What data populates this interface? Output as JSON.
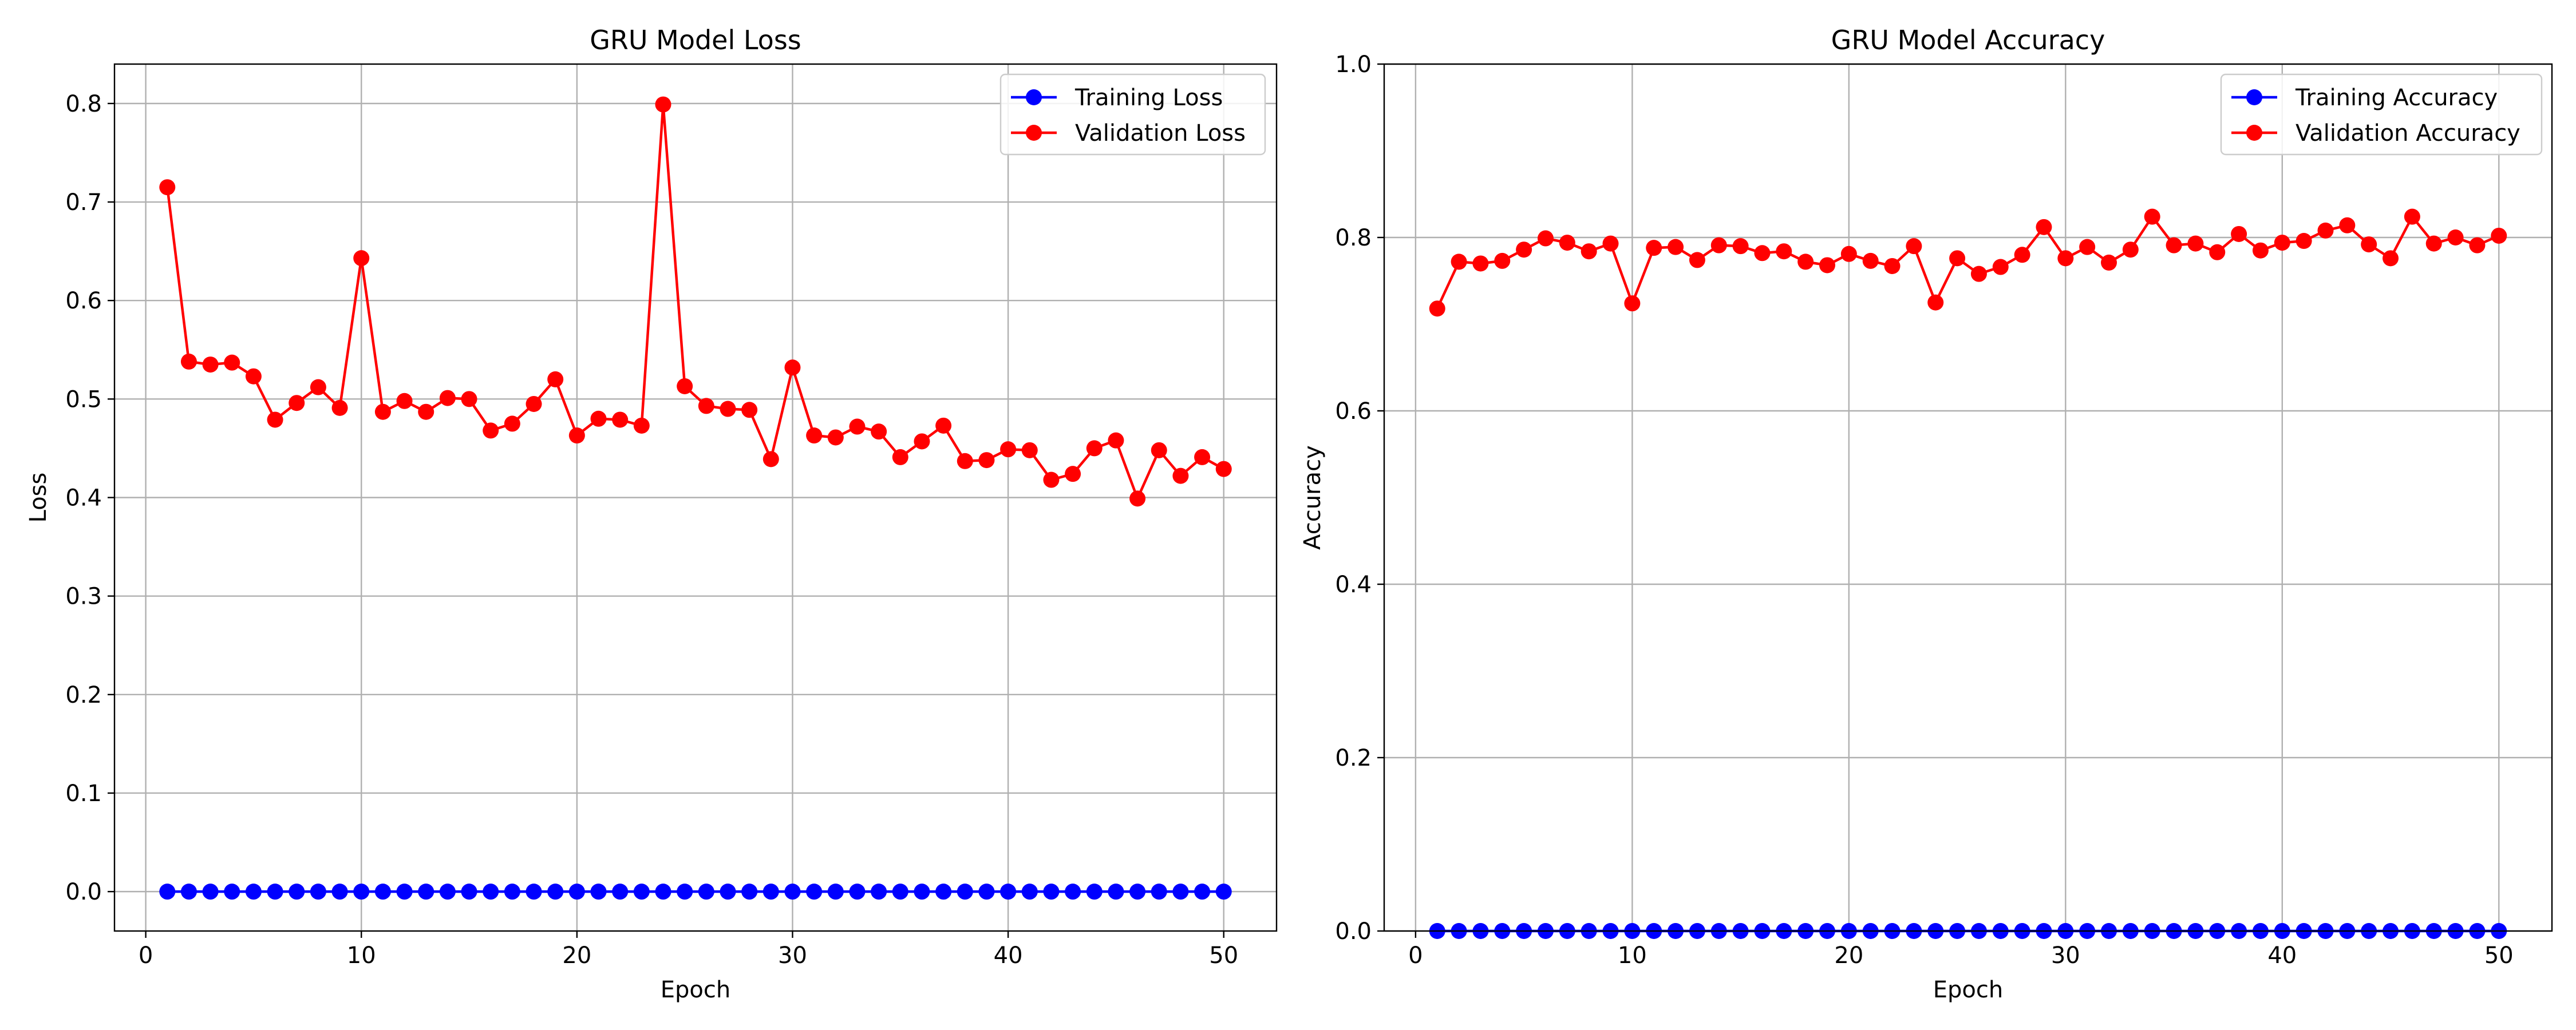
{
  "chart_data": [
    {
      "type": "line",
      "title": "GRU Model Loss",
      "xlabel": "Epoch",
      "ylabel": "Loss",
      "xlim": [
        -1.45,
        52.45
      ],
      "ylim": [
        -0.04,
        0.84
      ],
      "xticks": [
        0,
        10,
        20,
        30,
        40,
        50
      ],
      "xtick_labels": [
        "0",
        "10",
        "20",
        "30",
        "40",
        "50"
      ],
      "yticks": [
        0.0,
        0.1,
        0.2,
        0.3,
        0.4,
        0.5,
        0.6,
        0.7,
        0.8
      ],
      "ytick_labels": [
        "0.0",
        "0.1",
        "0.2",
        "0.3",
        "0.4",
        "0.5",
        "0.6",
        "0.7",
        "0.8"
      ],
      "grid": true,
      "legend_position": "top-right",
      "x": [
        1,
        2,
        3,
        4,
        5,
        6,
        7,
        8,
        9,
        10,
        11,
        12,
        13,
        14,
        15,
        16,
        17,
        18,
        19,
        20,
        21,
        22,
        23,
        24,
        25,
        26,
        27,
        28,
        29,
        30,
        31,
        32,
        33,
        34,
        35,
        36,
        37,
        38,
        39,
        40,
        41,
        42,
        43,
        44,
        45,
        46,
        47,
        48,
        49,
        50
      ],
      "series": [
        {
          "name": "Training Loss",
          "color": "#0000ff",
          "values": [
            0,
            0,
            0,
            0,
            0,
            0,
            0,
            0,
            0,
            0,
            0,
            0,
            0,
            0,
            0,
            0,
            0,
            0,
            0,
            0,
            0,
            0,
            0,
            0,
            0,
            0,
            0,
            0,
            0,
            0,
            0,
            0,
            0,
            0,
            0,
            0,
            0,
            0,
            0,
            0,
            0,
            0,
            0,
            0,
            0,
            0,
            0,
            0,
            0,
            0
          ]
        },
        {
          "name": "Validation Loss",
          "color": "#ff0000",
          "values": [
            0.715,
            0.538,
            0.535,
            0.537,
            0.523,
            0.479,
            0.496,
            0.512,
            0.491,
            0.643,
            0.487,
            0.498,
            0.487,
            0.501,
            0.5,
            0.468,
            0.475,
            0.495,
            0.52,
            0.463,
            0.48,
            0.479,
            0.473,
            0.799,
            0.513,
            0.493,
            0.49,
            0.489,
            0.439,
            0.532,
            0.463,
            0.461,
            0.472,
            0.467,
            0.441,
            0.457,
            0.473,
            0.437,
            0.438,
            0.449,
            0.448,
            0.418,
            0.424,
            0.45,
            0.458,
            0.399,
            0.448,
            0.422,
            0.441,
            0.429
          ]
        }
      ]
    },
    {
      "type": "line",
      "title": "GRU Model Accuracy",
      "xlabel": "Epoch",
      "ylabel": "Accuracy",
      "xlim": [
        -1.45,
        52.45
      ],
      "ylim": [
        0.0,
        1.0
      ],
      "xticks": [
        0,
        10,
        20,
        30,
        40,
        50
      ],
      "xtick_labels": [
        "0",
        "10",
        "20",
        "30",
        "40",
        "50"
      ],
      "yticks": [
        0.0,
        0.2,
        0.4,
        0.6,
        0.8,
        1.0
      ],
      "ytick_labels": [
        "0.0",
        "0.2",
        "0.4",
        "0.6",
        "0.8",
        "1.0"
      ],
      "grid": true,
      "legend_position": "top-right",
      "x": [
        1,
        2,
        3,
        4,
        5,
        6,
        7,
        8,
        9,
        10,
        11,
        12,
        13,
        14,
        15,
        16,
        17,
        18,
        19,
        20,
        21,
        22,
        23,
        24,
        25,
        26,
        27,
        28,
        29,
        30,
        31,
        32,
        33,
        34,
        35,
        36,
        37,
        38,
        39,
        40,
        41,
        42,
        43,
        44,
        45,
        46,
        47,
        48,
        49,
        50
      ],
      "series": [
        {
          "name": "Training Accuracy",
          "color": "#0000ff",
          "values": [
            0,
            0,
            0,
            0,
            0,
            0,
            0,
            0,
            0,
            0,
            0,
            0,
            0,
            0,
            0,
            0,
            0,
            0,
            0,
            0,
            0,
            0,
            0,
            0,
            0,
            0,
            0,
            0,
            0,
            0,
            0,
            0,
            0,
            0,
            0,
            0,
            0,
            0,
            0,
            0,
            0,
            0,
            0,
            0,
            0,
            0,
            0,
            0,
            0,
            0
          ]
        },
        {
          "name": "Validation Accuracy",
          "color": "#ff0000",
          "values": [
            0.718,
            0.772,
            0.77,
            0.773,
            0.786,
            0.799,
            0.794,
            0.784,
            0.793,
            0.724,
            0.788,
            0.789,
            0.774,
            0.791,
            0.79,
            0.782,
            0.784,
            0.772,
            0.768,
            0.781,
            0.773,
            0.767,
            0.79,
            0.725,
            0.776,
            0.758,
            0.766,
            0.78,
            0.812,
            0.776,
            0.789,
            0.771,
            0.786,
            0.824,
            0.791,
            0.793,
            0.783,
            0.804,
            0.785,
            0.794,
            0.796,
            0.808,
            0.814,
            0.792,
            0.776,
            0.824,
            0.793,
            0.8,
            0.791,
            0.802
          ]
        }
      ]
    }
  ]
}
